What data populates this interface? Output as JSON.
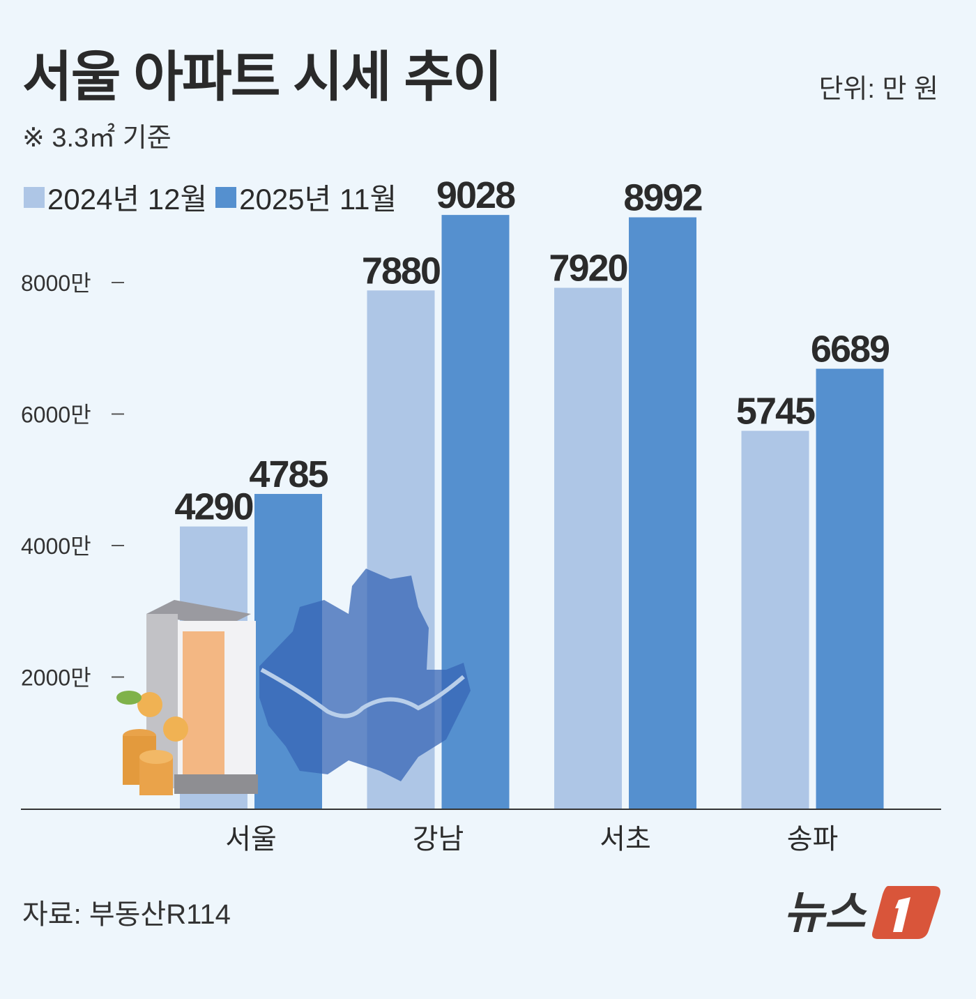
{
  "header": {
    "title": "서울 아파트 시세 추이",
    "unit": "단위: 만 원",
    "basis": "※ 3.3㎡ 기준"
  },
  "footer": {
    "source": "자료: 부동산R114",
    "logo_text": "뉴스1"
  },
  "chart_data": {
    "type": "bar",
    "categories": [
      "서울",
      "강남",
      "서초",
      "송파"
    ],
    "series": [
      {
        "name": "2024년 12월",
        "values": [
          4290,
          7880,
          7920,
          5745
        ],
        "color": "#aec6e6"
      },
      {
        "name": "2025년 11월",
        "values": [
          4785,
          9028,
          8992,
          6689
        ],
        "color": "#5590cf"
      }
    ],
    "yticks": [
      2000,
      4000,
      6000,
      8000
    ],
    "ytick_labels": [
      "2000만",
      "4000만",
      "6000만",
      "8000만"
    ],
    "ylim": [
      0,
      9500
    ],
    "legend": "top-left",
    "grid": false
  }
}
